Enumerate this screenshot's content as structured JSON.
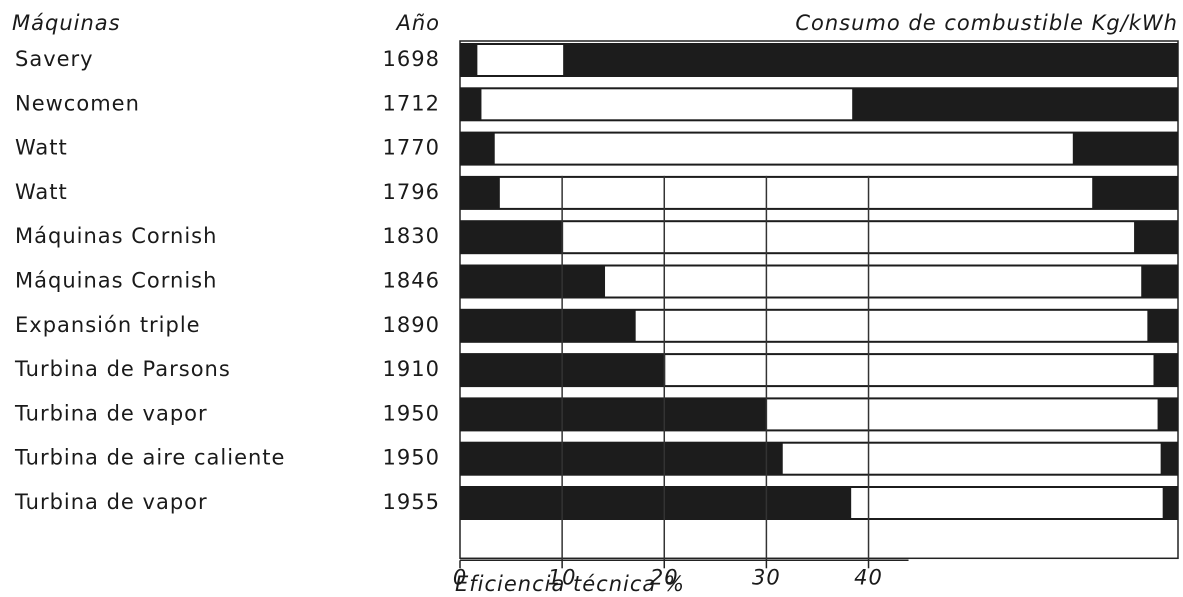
{
  "chart_data": {
    "type": "stacked-barh",
    "category_header": "Máquinas",
    "year_header": "Año",
    "categories": [
      "Savery",
      "Newcomen",
      "Watt",
      "Watt",
      "Máquinas Cornish",
      "Máquinas Cornish",
      "Expansión triple",
      "Turbina de Parsons",
      "Turbina de vapor",
      "Turbina de aire caliente",
      "Turbina de vapor"
    ],
    "years": [
      "1698",
      "1712",
      "1770",
      "1796",
      "1830",
      "1846",
      "1890",
      "1910",
      "1950",
      "1950",
      "1955"
    ],
    "series": [
      {
        "name": "Eficiencia técnica %",
        "color": "#1c1c1c",
        "values": [
          1.7,
          2.1,
          3.4,
          3.9,
          10.1,
          14.2,
          17.2,
          20.1,
          30.0,
          31.6,
          38.3
        ]
      },
      {
        "name": "Consumo de combustible Kg/kWh",
        "color": "#ffffff",
        "values": [
          8.4,
          36.3,
          56.6,
          58.0,
          55.9,
          52.5,
          50.1,
          47.8,
          38.3,
          37.0,
          30.5
        ]
      }
    ],
    "xlim": [
      0,
      70.3
    ],
    "xticks": [
      0,
      10,
      20,
      30,
      40
    ],
    "grid": true
  }
}
